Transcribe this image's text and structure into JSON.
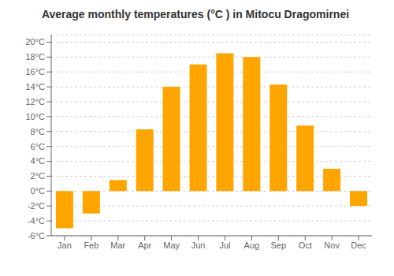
{
  "chart_data": {
    "type": "bar",
    "title": "Average monthly temperatures (°C ) in Mitocu Dragomirnei",
    "categories": [
      "Jan",
      "Feb",
      "Mar",
      "Apr",
      "May",
      "Jun",
      "Jul",
      "Aug",
      "Sep",
      "Oct",
      "Nov",
      "Dec"
    ],
    "values": [
      -5.0,
      -3.0,
      1.5,
      8.3,
      14.0,
      17.0,
      18.5,
      18.0,
      14.3,
      8.8,
      3.0,
      -2.0
    ],
    "color": "#FFA500",
    "ylim": [
      -6,
      21
    ],
    "yticks": [
      {
        "value": -6,
        "label": "-6°C"
      },
      {
        "value": -4,
        "label": "-4°C"
      },
      {
        "value": -2,
        "label": "-2°C"
      },
      {
        "value": 0,
        "label": "0°C"
      },
      {
        "value": 2,
        "label": "2°C"
      },
      {
        "value": 4,
        "label": "4°C"
      },
      {
        "value": 6,
        "label": "6°C"
      },
      {
        "value": 8,
        "label": "8°C"
      },
      {
        "value": 10,
        "label": "10°C"
      },
      {
        "value": 12,
        "label": "12°C"
      },
      {
        "value": 14,
        "label": "14°C"
      },
      {
        "value": 16,
        "label": "16°C"
      },
      {
        "value": 18,
        "label": "18°C"
      },
      {
        "value": 20,
        "label": "20°C"
      }
    ],
    "grid": true
  }
}
